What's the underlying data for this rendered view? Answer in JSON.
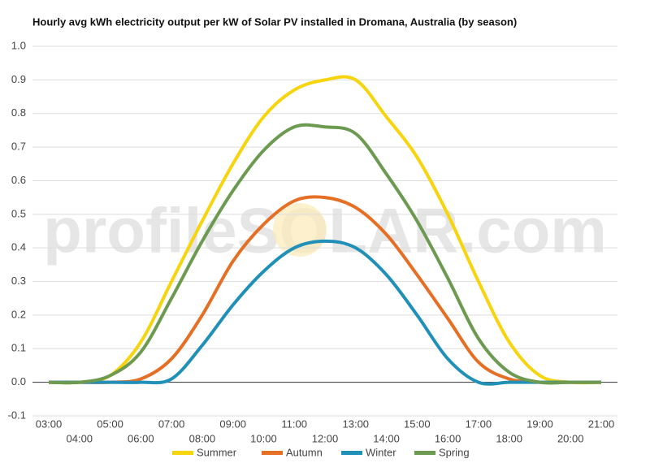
{
  "chart_data": {
    "type": "line",
    "title": "Hourly avg kWh electricity output per kW of Solar PV installed in Dromana, Australia (by season)",
    "watermark": "profileSOLAR.com",
    "categories": [
      "03:00",
      "04:00",
      "05:00",
      "06:00",
      "07:00",
      "08:00",
      "09:00",
      "10:00",
      "11:00",
      "12:00",
      "13:00",
      "14:00",
      "15:00",
      "16:00",
      "17:00",
      "18:00",
      "19:00",
      "20:00",
      "21:00"
    ],
    "series": [
      {
        "name": "Summer",
        "color": "#f6d40e",
        "values": [
          0,
          0,
          0.02,
          0.12,
          0.3,
          0.48,
          0.65,
          0.79,
          0.87,
          0.9,
          0.9,
          0.79,
          0.67,
          0.5,
          0.3,
          0.12,
          0.02,
          0,
          0
        ]
      },
      {
        "name": "Autumn",
        "color": "#e56f24",
        "values": [
          0,
          0,
          0,
          0.01,
          0.07,
          0.2,
          0.36,
          0.47,
          0.54,
          0.55,
          0.52,
          0.44,
          0.32,
          0.19,
          0.06,
          0.01,
          0,
          0,
          0
        ]
      },
      {
        "name": "Winter",
        "color": "#2190b8",
        "values": [
          0,
          0,
          0,
          0,
          0.01,
          0.11,
          0.23,
          0.33,
          0.4,
          0.42,
          0.4,
          0.32,
          0.2,
          0.07,
          0,
          0,
          0,
          0,
          0
        ]
      },
      {
        "name": "Spring",
        "color": "#6c9a50",
        "values": [
          0,
          0,
          0.02,
          0.09,
          0.25,
          0.42,
          0.57,
          0.69,
          0.76,
          0.76,
          0.74,
          0.62,
          0.48,
          0.31,
          0.13,
          0.03,
          0,
          0,
          0
        ]
      }
    ],
    "ylim": [
      -0.1,
      1.0
    ],
    "yticks": [
      -0.1,
      {
        "value": 0,
        "label": "0.0"
      },
      0.1,
      0.2,
      0.3,
      0.4,
      0.5,
      0.6,
      0.7,
      0.8,
      0.9,
      {
        "value": 1,
        "label": "1.0"
      }
    ],
    "grid": true,
    "legend": "bottom"
  }
}
